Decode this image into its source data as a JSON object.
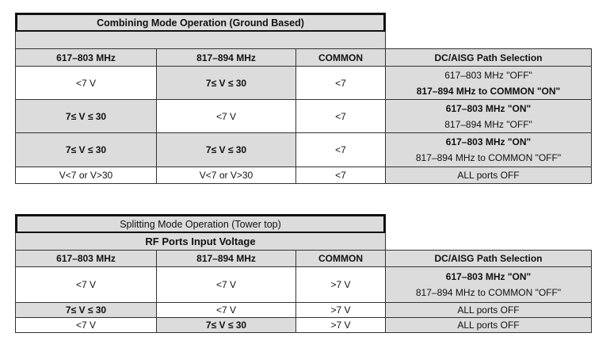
{
  "combining": {
    "title": "Combining Mode Operation (Ground Based)",
    "headers": [
      "617–803 MHz",
      "817–894 MHz",
      "COMMON",
      "DC/AISG Path Selection"
    ],
    "rows": [
      {
        "c1": "<7 V",
        "c2": "7≤ V ≤ 30",
        "c3": "<7",
        "dc": [
          "617–803 MHz  \"OFF\"",
          "817–894 MHz to COMMON \"ON\""
        ]
      },
      {
        "c1": "7≤ V ≤ 30",
        "c2": "<7 V",
        "c3": "<7",
        "dc": [
          "617–803 MHz \"ON\"",
          "817–894 MHz \"OFF\""
        ]
      },
      {
        "c1": "7≤ V ≤ 30",
        "c2": "7≤ V ≤ 30",
        "c3": "<7",
        "dc": [
          "617–803 MHz  \"ON\"",
          "817–894 MHz to COMMON \"OFF\""
        ]
      },
      {
        "c1": "V<7 or V>30",
        "c2": "V<7 or V>30",
        "c3": "<7",
        "dc": [
          "ALL ports OFF"
        ]
      }
    ]
  },
  "splitting": {
    "title": "Splitting Mode Operation (Tower top)",
    "subtitle": "RF Ports Input Voltage",
    "headers": [
      "617–803 MHz",
      "817–894 MHz",
      "COMMON",
      "DC/AISG Path Selection"
    ],
    "rows": [
      {
        "c1": "<7 V",
        "c2": "<7 V",
        "c3": ">7 V",
        "dc": [
          "617–803 MHz  \"ON\"",
          "817–894 MHz to COMMON \"OFF\""
        ]
      },
      {
        "c1": "7≤ V ≤ 30",
        "c2": "<7 V",
        "c3": ">7 V",
        "dc": [
          "ALL ports OFF"
        ]
      },
      {
        "c1": "<7 V",
        "c2": "7≤ V ≤ 30",
        "c3": ">7 V",
        "dc": [
          "ALL ports OFF"
        ]
      }
    ]
  }
}
